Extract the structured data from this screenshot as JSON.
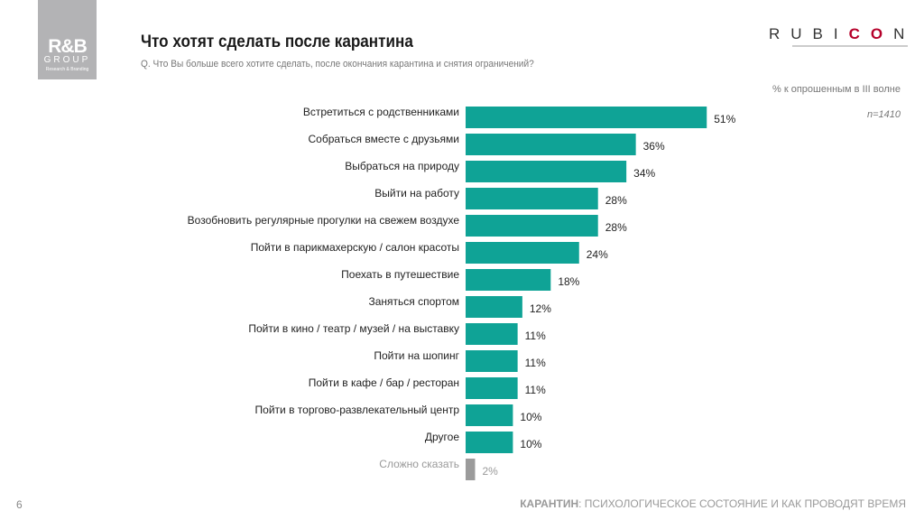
{
  "logo_left": {
    "main": "R&B",
    "group": "GROUP",
    "tag": "Research & Branding"
  },
  "logo_right": {
    "prefix": "RUBI",
    "accent": "CO",
    "suffix": "N"
  },
  "header": {
    "title": "Что хотят сделать после карантина",
    "question": "Q. Что Вы больше всего хотите сделать, после окончания карантина и снятия ограничений?"
  },
  "note": "% к опрошенным в III волне",
  "sample": "n=1410",
  "page_number": "6",
  "footer": {
    "bold": "КАРАНТИН",
    "rest": ": ПСИХОЛОГИЧЕСКОЕ СОСТОЯНИЕ И КАК ПРОВОДЯТ ВРЕМЯ"
  },
  "colors": {
    "bar": "#0fa396",
    "muted_bar": "#9b9b9b",
    "accent": "#b5002a"
  },
  "chart_data": {
    "type": "bar",
    "orientation": "horizontal",
    "categories": [
      "Встретиться с родственниками",
      "Собраться вместе с друзьями",
      "Выбраться на природу",
      "Выйти на работу",
      "Возобновить регулярные прогулки на свежем воздухе",
      "Пойти в парикмахерскую / салон красоты",
      "Поехать в путешествие",
      "Заняться спортом",
      "Пойти в кино / театр / музей / на выставку",
      "Пойти на шопинг",
      "Пойти в кафе / бар / ресторан",
      "Пойти в торгово-развлекательный центр",
      "Другое",
      "Сложно сказать"
    ],
    "values": [
      51,
      36,
      34,
      28,
      28,
      24,
      18,
      12,
      11,
      11,
      11,
      10,
      10,
      2
    ],
    "data_labels": [
      "51%",
      "36%",
      "34%",
      "28%",
      "28%",
      "24%",
      "18%",
      "12%",
      "11%",
      "11%",
      "11%",
      "10%",
      "10%",
      "2%"
    ],
    "unit": "%",
    "grid": false
  }
}
